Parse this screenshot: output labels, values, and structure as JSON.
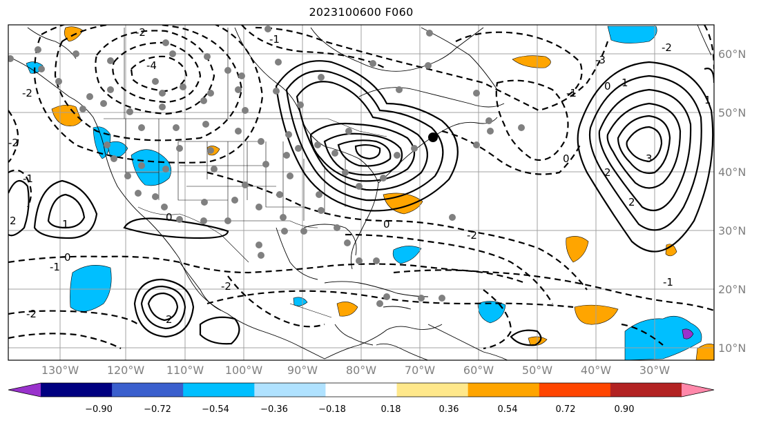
{
  "title": "2023100600 F060",
  "lon_labels": [
    "130°W",
    "120°W",
    "110°W",
    "100°W",
    "90°W",
    "80°W",
    "70°W",
    "60°W",
    "50°W",
    "40°W",
    "30°W"
  ],
  "lat_labels": [
    "60°N",
    "50°N",
    "40°N",
    "30°N",
    "20°N",
    "10°N"
  ],
  "colorbar": {
    "colors": [
      "#9932cc",
      "#000080",
      "#3a5fcd",
      "#00bfff",
      "#b0e2ff",
      "#ffffff",
      "#ffe88b",
      "#ffa500",
      "#ff4500",
      "#b22222",
      "#ff88aa"
    ],
    "tick_labels": [
      "−0.90",
      "−0.72",
      "−0.54",
      "−0.36",
      "−0.18",
      "0.18",
      "0.36",
      "0.54",
      "0.72",
      "0.90"
    ]
  },
  "contour_labels": [
    "-2",
    "-4",
    "-1",
    "-3",
    "-2",
    "-1",
    "0",
    "1",
    "2",
    "3",
    "1",
    "0",
    "-2",
    "-1",
    "-1",
    "2",
    "1",
    "0",
    "-2",
    "0",
    "-1",
    "2",
    "-2",
    "-2",
    "0",
    "-2",
    "2"
  ],
  "colors": {
    "positive": "#ffa500",
    "negative": "#00bfff",
    "stations": "#808080",
    "contours": "#000000"
  }
}
